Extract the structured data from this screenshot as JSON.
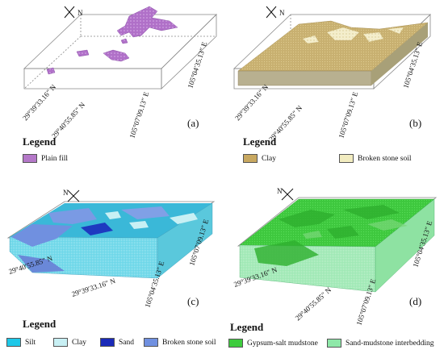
{
  "panels": {
    "a": {
      "letter": "(a)",
      "legend_title": "Legend",
      "coords": {
        "lat_west": "29°39′33.16″ N",
        "lat_east": "29°40′55.85″ N",
        "lon_front": "105°07′09.13″ E",
        "lon_back": "105°04′35.13″ E"
      },
      "legend": [
        {
          "label": "Plain fill",
          "color": "#b478c8"
        }
      ]
    },
    "b": {
      "letter": "(b)",
      "legend_title": "Legend",
      "coords": {
        "lat_west": "29°39′33.16″ N",
        "lat_east": "29°40′55.85″ N",
        "lon_front": "105°07′09.13″ E",
        "lon_back": "105°04′35.13″ E"
      },
      "legend": [
        {
          "label": "Clay",
          "color": "#c8a860"
        },
        {
          "label": "Broken stone soil",
          "color": "#f2ecc0"
        }
      ]
    },
    "c": {
      "letter": "(c)",
      "legend_title": "Legend",
      "coords": {
        "lat_west": "29°40′55.85″ N",
        "lat_east": "29°39′33.16″ N",
        "lon_front": "105°04′35.13″ E",
        "lon_back": "105°07′09.13″ E"
      },
      "legend": [
        {
          "label": "Silt",
          "color": "#1ec8e8"
        },
        {
          "label": "Clay",
          "color": "#c8f0f4"
        },
        {
          "label": "Sand",
          "color": "#1a2ab8"
        },
        {
          "label": "Broken stone soil",
          "color": "#7090e0"
        }
      ]
    },
    "d": {
      "letter": "(d)",
      "legend_title": "Legend",
      "coords": {
        "lat_west": "29°39′33.16″ N",
        "lat_east": "29°40′55.85″ N",
        "lon_front": "105°07′09.13″ E",
        "lon_back": "105°04′35.13″ E"
      },
      "legend": [
        {
          "label": "Gypsum-salt mudstone",
          "color": "#3ecc3e"
        },
        {
          "label": "Sand-mudstone interbedding",
          "color": "#8ee8a8"
        }
      ]
    }
  },
  "compass_label": "N"
}
